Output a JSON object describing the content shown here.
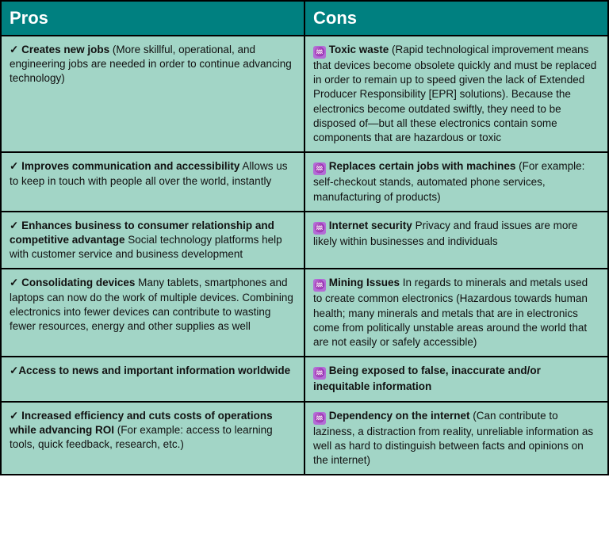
{
  "colors": {
    "header_bg": "#008080",
    "header_text": "#ffffff",
    "cell_bg": "#a2d5c6",
    "border": "#000000",
    "con_icon_bg": "#b46bd6",
    "con_icon_fg": "#ffffff",
    "text": "#111111"
  },
  "pros_header": "Pros",
  "cons_header": "Cons",
  "check_mark": "✓",
  "con_icon_glyph": "♒",
  "rows": [
    {
      "pro_title": "Creates new jobs",
      "pro_body": " (More skillful, operational, and engineering jobs are needed in order to continue advancing technology)",
      "con_title": "Toxic waste",
      "con_body": " (Rapid technological improvement means that devices become obsolete quickly and must be replaced in order to remain up to speed given the lack of Extended Producer Responsibility [EPR] solutions).  Because the electronics become outdated swiftly, they need to be disposed of—but all these electronics contain some components that are hazardous or toxic"
    },
    {
      "pro_title": "Improves communication and accessibility",
      "pro_body": " Allows us to keep in touch with people all over the world, instantly",
      "con_title": "Replaces certain jobs with machines",
      "con_body": " (For example: self-checkout stands, automated phone services, manufacturing of products)"
    },
    {
      "pro_title": "Enhances business to consumer relationship and competitive advantage",
      "pro_body": " Social technology platforms help with customer service and business development",
      "con_title": "Internet security",
      "con_body": "  Privacy and fraud issues are more likely within businesses and individuals"
    },
    {
      "pro_title": "Consolidating devices",
      "pro_body": " Many tablets, smartphones and laptops can now do the work of multiple devices. Combining electronics into fewer devices can contribute to wasting fewer resources, energy and other supplies as well",
      "con_title": "Mining Issues",
      "con_body": " In regards to minerals and metals used to create common electronics (Hazardous towards human health; many minerals and  metals that are in electronics come from politically unstable areas around the world that are not easily or safely accessible)"
    },
    {
      "pro_title": "Access to news and important information worldwide",
      "pro_body": "",
      "con_title": "Being exposed to false, inaccurate and/or inequitable information",
      "con_body": ""
    },
    {
      "pro_title": "Increased efficiency and cuts costs of operations while advancing ROI",
      "pro_body": " (For example: access to learning tools, quick feedback, research, etc.)",
      "con_title": "Dependency on the internet",
      "con_body": " (Can contribute to laziness, a distraction from reality, unreliable information  as well as hard to distinguish between facts and opinions on the internet)"
    }
  ]
}
